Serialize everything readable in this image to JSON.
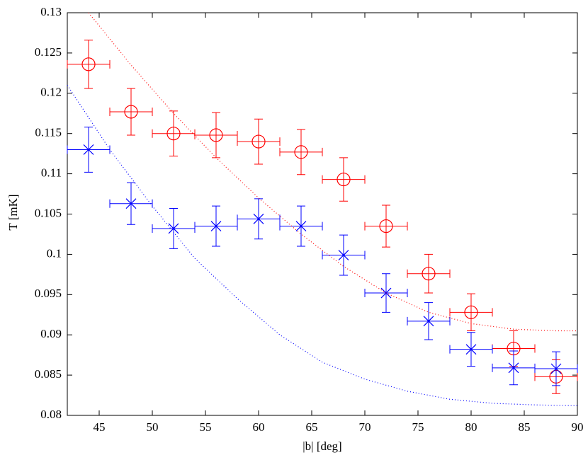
{
  "chart_data": {
    "type": "scatter",
    "xlabel": "|b| [deg]",
    "ylabel": "T [mK]",
    "xlim": [
      42,
      90
    ],
    "ylim": [
      0.08,
      0.13
    ],
    "xticks": [
      45,
      50,
      55,
      60,
      65,
      70,
      75,
      80,
      85,
      90
    ],
    "yticks": [
      0.08,
      0.085,
      0.09,
      0.095,
      0.1,
      0.105,
      0.11,
      0.115,
      0.12,
      0.125,
      0.13
    ],
    "series": [
      {
        "color": "#ff0000",
        "marker": "circle",
        "x": [
          44,
          48,
          52,
          56,
          60,
          64,
          68,
          72,
          76,
          80,
          84,
          88
        ],
        "values": [
          0.1236,
          0.1177,
          0.115,
          0.1148,
          0.114,
          0.1127,
          0.1093,
          0.1035,
          0.0976,
          0.0928,
          0.0883,
          0.0848
        ],
        "yerr": [
          0.003,
          0.0029,
          0.0028,
          0.0028,
          0.0028,
          0.0028,
          0.0027,
          0.0026,
          0.0024,
          0.0023,
          0.0022,
          0.0021
        ],
        "xerr": [
          2,
          2,
          2,
          2,
          2,
          2,
          2,
          2,
          2,
          2,
          2,
          2
        ]
      },
      {
        "color": "#0000ff",
        "marker": "x",
        "x": [
          44,
          48,
          52,
          56,
          60,
          64,
          68,
          72,
          76,
          80,
          84,
          88
        ],
        "values": [
          0.113,
          0.1063,
          0.1032,
          0.1035,
          0.1044,
          0.1035,
          0.0999,
          0.0952,
          0.0917,
          0.0882,
          0.0859,
          0.0858
        ],
        "yerr": [
          0.0028,
          0.0026,
          0.0025,
          0.0025,
          0.0025,
          0.0025,
          0.0025,
          0.0024,
          0.0023,
          0.0021,
          0.0021,
          0.0021
        ],
        "xerr": [
          2,
          2,
          2,
          2,
          2,
          2,
          2,
          2,
          2,
          2,
          2,
          2
        ]
      },
      {
        "color": "#ff0000",
        "marker": "dotted-line",
        "x": [
          44,
          48,
          52,
          56,
          60,
          64,
          68,
          72,
          76,
          80,
          84,
          88,
          90
        ],
        "values": [
          0.13,
          0.1235,
          0.1175,
          0.112,
          0.107,
          0.1025,
          0.0985,
          0.0952,
          0.0928,
          0.0914,
          0.0907,
          0.0905,
          0.0905
        ]
      },
      {
        "color": "#0000ff",
        "marker": "dotted-line",
        "x": [
          42,
          46,
          50,
          54,
          58,
          62,
          66,
          70,
          74,
          78,
          82,
          86,
          90
        ],
        "values": [
          0.121,
          0.113,
          0.106,
          0.0995,
          0.0945,
          0.09,
          0.0866,
          0.0845,
          0.083,
          0.082,
          0.0815,
          0.0813,
          0.0812
        ]
      }
    ]
  }
}
